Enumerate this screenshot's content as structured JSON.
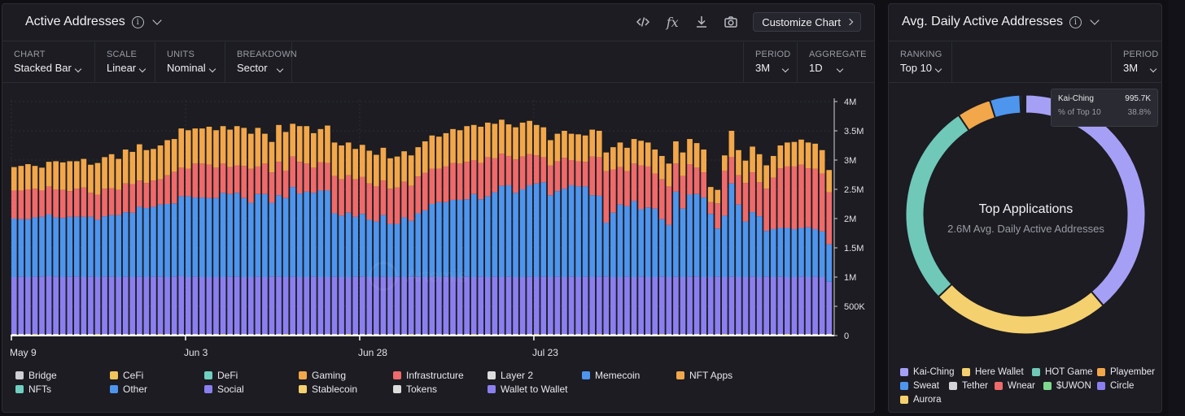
{
  "left": {
    "title": "Active Addresses",
    "tools": {
      "customize_label": "Customize Chart"
    },
    "controls": [
      {
        "label": "CHART",
        "value": "Stacked Bar"
      },
      {
        "label": "SCALE",
        "value": "Linear"
      },
      {
        "label": "UNITS",
        "value": "Nominal"
      },
      {
        "label": "BREAKDOWN",
        "value": "Sector"
      }
    ],
    "controls_right": [
      {
        "label": "PERIOD",
        "value": "3M"
      },
      {
        "label": "AGGREGATE",
        "value": "1D"
      }
    ],
    "watermark": "Artemis"
  },
  "right": {
    "title": "Avg. Daily Active Addresses",
    "controls": [
      {
        "label": "RANKING",
        "value": "Top 10"
      }
    ],
    "controls_right": [
      {
        "label": "PERIOD",
        "value": "3M"
      }
    ],
    "center_title": "Top Applications",
    "center_sub": "2.6M Avg. Daily Active Addresses",
    "tooltip": {
      "name": "Kai-Ching",
      "value": "995.7K",
      "pct_label": "% of Top 10",
      "pct_value": "38.8%"
    }
  },
  "chart_data": [
    {
      "type": "bar",
      "stacked": true,
      "title": "Active Addresses",
      "x_tick_labels": [
        "May 9",
        "Jun 3",
        "Jun 28",
        "Jul 23"
      ],
      "y_tick_labels": [
        "0",
        "500K",
        "1M",
        "1.5M",
        "2M",
        "2.5M",
        "3M",
        "3.5M",
        "4M"
      ],
      "ylim": [
        0,
        4000000
      ],
      "y_axis_position": "right",
      "grid": true,
      "legend_position": "bottom",
      "series_names": [
        "Bridge",
        "CeFi",
        "DeFi",
        "Gaming",
        "Infrastructure",
        "Layer 2",
        "Memecoin",
        "NFT Apps",
        "NFTs",
        "Other",
        "Social",
        "Stablecoin",
        "Tokens",
        "Wallet to Wallet"
      ],
      "series_colors": {
        "Bridge": "#cfcfd6",
        "CeFi": "#f2c45a",
        "DeFi": "#6fd0c2",
        "Gaming": "#f2a74a",
        "Infrastructure": "#ef6a6a",
        "Layer 2": "#dcdcdc",
        "Memecoin": "#4e95ee",
        "NFT Apps": "#f2a74a",
        "NFTs": "#6fd0c2",
        "Other": "#4e95ee",
        "Social": "#8b7ff0",
        "Stablecoin": "#f4d06f",
        "Tokens": "#dcdcdc",
        "Wallet to Wallet": "#8b7ff0"
      },
      "plotted_series": [
        "Wallet to Wallet",
        "Memecoin",
        "Infrastructure",
        "Gaming"
      ],
      "totals": [
        2880000,
        2900000,
        2930000,
        2900000,
        2870000,
        2970000,
        2980000,
        2960000,
        2980000,
        2980000,
        3020000,
        2920000,
        2950000,
        3050000,
        3100000,
        3020000,
        3180000,
        3140000,
        3270000,
        3170000,
        3190000,
        3250000,
        3340000,
        3360000,
        3540000,
        3510000,
        3540000,
        3540000,
        3570000,
        3510000,
        3580000,
        3520000,
        3580000,
        3550000,
        3450000,
        3550000,
        3450000,
        3310000,
        3600000,
        3480000,
        3620000,
        3580000,
        3580000,
        3460000,
        3530000,
        3590000,
        3300000,
        3250000,
        3300000,
        3190000,
        3260000,
        3160000,
        3090000,
        3210000,
        3030000,
        3060000,
        3150000,
        3080000,
        3220000,
        3320000,
        3420000,
        3400000,
        3460000,
        3530000,
        3510000,
        3580000,
        3600000,
        3570000,
        3640000,
        3620000,
        3690000,
        3610000,
        3560000,
        3640000,
        3670000,
        3600000,
        3560000,
        3340000,
        3450000,
        3500000,
        3450000,
        3440000,
        3420000,
        3520000,
        3500000,
        3130000,
        3230000,
        3300000,
        3210000,
        3370000,
        3330000,
        3300000,
        3180000,
        3070000,
        2940000,
        3320000,
        3130000,
        3360000,
        3290000,
        3180000,
        2540000,
        2490000,
        3080000,
        3500000,
        3170000,
        2990000,
        3230000,
        3100000,
        2910000,
        3080000,
        3240000,
        3300000,
        3310000,
        3340000,
        3310000,
        3280000,
        3170000,
        2830000
      ],
      "wallet_to_wallet": [
        1000000,
        1010000,
        1000000,
        1010000,
        1010000,
        1020000,
        1010000,
        1000000,
        1010000,
        1010000,
        1000000,
        1010000,
        1000000,
        1010000,
        1010000,
        1000000,
        1010000,
        1000000,
        1010000,
        1000000,
        1010000,
        1010000,
        1000000,
        1010000,
        1020000,
        1000000,
        1010000,
        1000000,
        1000000,
        1000000,
        1000000,
        1010000,
        1010000,
        1000000,
        1000000,
        1010000,
        1000000,
        1010000,
        1010000,
        1000000,
        1010000,
        1000000,
        1000000,
        1010000,
        1000000,
        1000000,
        1010000,
        1000000,
        1000000,
        1010000,
        1010000,
        1000000,
        1000000,
        1010000,
        1000000,
        1010000,
        1000000,
        1010000,
        1010000,
        1000000,
        1010000,
        1000000,
        1010000,
        1000000,
        1000000,
        1010000,
        1000000,
        1010000,
        1000000,
        1010000,
        1000000,
        1010000,
        1000000,
        1000000,
        1010000,
        1000000,
        1010000,
        1000000,
        1010000,
        1000000,
        1010000,
        1000000,
        1010000,
        1000000,
        1010000,
        1010000,
        1000000,
        1000000,
        1010000,
        1000000,
        1010000,
        1000000,
        1000000,
        1010000,
        1000000,
        1010000,
        1000000,
        1010000,
        1010000,
        1000000,
        1000000,
        1010000,
        1000000,
        1010000,
        1000000,
        1000000,
        1010000,
        1000000,
        1010000,
        1000000,
        1010000,
        1000000,
        1000000,
        1010000,
        1000000,
        1010000,
        1000000,
        920000
      ],
      "memecoin": [
        1000000,
        980000,
        990000,
        1010000,
        1020000,
        1050000,
        1010000,
        1010000,
        1020000,
        1020000,
        1030000,
        1020000,
        980000,
        1030000,
        1050000,
        1060000,
        1100000,
        1100000,
        1190000,
        1180000,
        1190000,
        1230000,
        1250000,
        1250000,
        1360000,
        1380000,
        1350000,
        1360000,
        1350000,
        1350000,
        1440000,
        1410000,
        1430000,
        1350000,
        1270000,
        1410000,
        1420000,
        1260000,
        1390000,
        1350000,
        1530000,
        1430000,
        1460000,
        1430000,
        1480000,
        1480000,
        1080000,
        1050000,
        1100000,
        1020000,
        1070000,
        980000,
        950000,
        1050000,
        910000,
        900000,
        1020000,
        950000,
        1080000,
        1140000,
        1240000,
        1280000,
        1270000,
        1320000,
        1320000,
        1320000,
        1420000,
        1320000,
        1380000,
        1440000,
        1560000,
        1560000,
        1440000,
        1500000,
        1560000,
        1600000,
        1610000,
        1400000,
        1460000,
        1510000,
        1560000,
        1550000,
        1540000,
        1400000,
        1380000,
        920000,
        1100000,
        1240000,
        1200000,
        1300000,
        1150000,
        1190000,
        1170000,
        980000,
        890000,
        1450000,
        1170000,
        1400000,
        1410000,
        1360000,
        1080000,
        820000,
        1050000,
        1590000,
        1240000,
        950000,
        1100000,
        1040000,
        780000,
        820000,
        830000,
        840000,
        820000,
        830000,
        850000,
        810000,
        780000,
        640000
      ],
      "infrastructure": [
        480000,
        490000,
        510000,
        490000,
        450000,
        480000,
        480000,
        480000,
        440000,
        480000,
        500000,
        410000,
        430000,
        470000,
        460000,
        430000,
        490000,
        490000,
        450000,
        430000,
        450000,
        430000,
        490000,
        540000,
        490000,
        470000,
        580000,
        580000,
        570000,
        520000,
        500000,
        460000,
        470000,
        550000,
        580000,
        470000,
        520000,
        520000,
        570000,
        470000,
        520000,
        540000,
        480000,
        430000,
        480000,
        470000,
        640000,
        620000,
        640000,
        640000,
        630000,
        620000,
        600000,
        590000,
        600000,
        620000,
        610000,
        600000,
        630000,
        640000,
        600000,
        570000,
        610000,
        630000,
        620000,
        640000,
        580000,
        620000,
        670000,
        580000,
        550000,
        500000,
        570000,
        560000,
        530000,
        480000,
        430000,
        510000,
        510000,
        530000,
        430000,
        430000,
        420000,
        660000,
        660000,
        880000,
        740000,
        640000,
        600000,
        640000,
        750000,
        700000,
        600000,
        680000,
        660000,
        480000,
        560000,
        520000,
        450000,
        430000,
        200000,
        430000,
        770000,
        450000,
        500000,
        660000,
        680000,
        580000,
        720000,
        880000,
        1020000,
        1050000,
        1070000,
        1080000,
        1010000,
        1030000,
        990000,
        890000
      ],
      "gaming": [
        400000,
        420000,
        430000,
        390000,
        390000,
        420000,
        480000,
        470000,
        510000,
        470000,
        490000,
        480000,
        540000,
        540000,
        580000,
        530000,
        580000,
        550000,
        620000,
        560000,
        540000,
        580000,
        600000,
        560000,
        670000,
        660000,
        600000,
        600000,
        650000,
        640000,
        640000,
        640000,
        670000,
        650000,
        600000,
        660000,
        510000,
        520000,
        630000,
        660000,
        560000,
        610000,
        640000,
        590000,
        570000,
        640000,
        570000,
        580000,
        560000,
        520000,
        550000,
        560000,
        540000,
        560000,
        520000,
        530000,
        520000,
        520000,
        500000,
        540000,
        570000,
        550000,
        570000,
        580000,
        570000,
        610000,
        600000,
        620000,
        590000,
        590000,
        580000,
        540000,
        550000,
        580000,
        570000,
        520000,
        510000,
        430000,
        470000,
        460000,
        450000,
        460000,
        450000,
        460000,
        450000,
        320000,
        380000,
        420000,
        400000,
        420000,
        420000,
        410000,
        410000,
        400000,
        390000,
        380000,
        400000,
        430000,
        420000,
        390000,
        260000,
        230000,
        260000,
        450000,
        430000,
        380000,
        440000,
        480000,
        400000,
        370000,
        390000,
        410000,
        420000,
        430000,
        440000,
        430000,
        400000,
        380000
      ]
    },
    {
      "type": "pie",
      "donut": true,
      "title": "Avg. Daily Active Addresses",
      "center_title": "Top Applications",
      "center_sub": "2.6M Avg. Daily Active Addresses",
      "legend_position": "bottom",
      "slices": [
        {
          "name": "Kai-Ching",
          "value": 995700,
          "percent": 38.8,
          "color": "#a5a0f5"
        },
        {
          "name": "Here Wallet",
          "value": 620000,
          "percent": 24.2,
          "color": "#f4d06f"
        },
        {
          "name": "HOT Game",
          "value": 710000,
          "percent": 27.7,
          "color": "#6fc8b8"
        },
        {
          "name": "Playember",
          "value": 118000,
          "percent": 4.6,
          "color": "#f2a74a"
        },
        {
          "name": "Sweat",
          "value": 105000,
          "percent": 4.1,
          "color": "#4e95ee"
        },
        {
          "name": "Tether",
          "value": 6000,
          "percent": 0.25,
          "color": "#d4d4d8"
        },
        {
          "name": "Wnear",
          "value": 5000,
          "percent": 0.2,
          "color": "#ef6a6a"
        },
        {
          "name": "$UWON",
          "value": 4000,
          "percent": 0.15,
          "color": "#7ed98f"
        },
        {
          "name": "Circle",
          "value": 2000,
          "percent": 0.08,
          "color": "#8b7ff0"
        },
        {
          "name": "Aurora",
          "value": 1000,
          "percent": 0.04,
          "color": "#f4d06f"
        }
      ]
    }
  ]
}
